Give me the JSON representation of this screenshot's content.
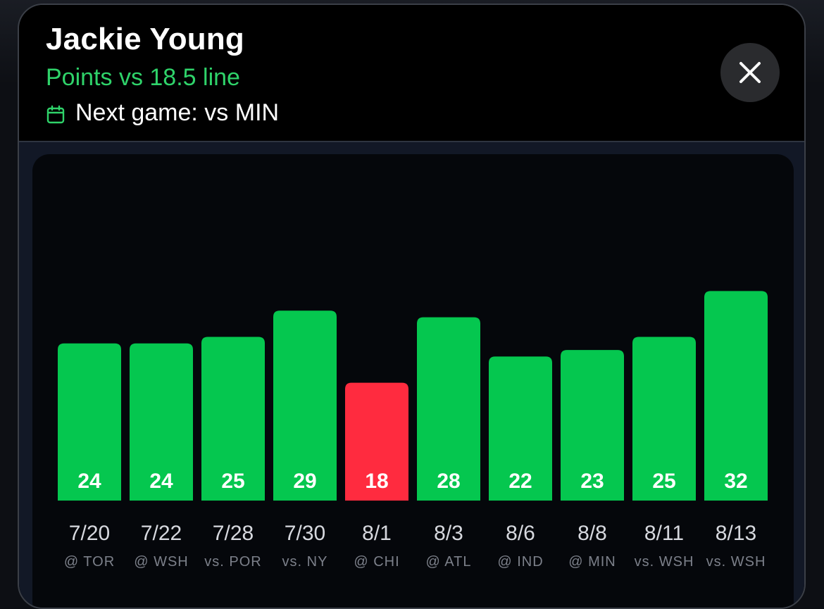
{
  "header": {
    "title": "Jackie Young",
    "subtitle": "Points vs 18.5 line",
    "next_game": "Next game: vs MIN",
    "calendar_icon": "calendar-icon",
    "close_icon": "close-icon"
  },
  "colors": {
    "over": "#05c74f",
    "under": "#ff2b3f",
    "accent": "#2fd36a"
  },
  "chart_data": {
    "type": "bar",
    "line": 18.5,
    "categories": [
      "7/20",
      "7/22",
      "7/28",
      "7/30",
      "8/1",
      "8/3",
      "8/6",
      "8/8",
      "8/11",
      "8/13"
    ],
    "opponents": [
      "@ TOR",
      "@ WSH",
      "vs. POR",
      "vs. NY",
      "@ CHI",
      "@ ATL",
      "@ IND",
      "@ MIN",
      "vs. WSH",
      "vs. WSH"
    ],
    "values": [
      24,
      24,
      25,
      29,
      18,
      28,
      22,
      23,
      25,
      32
    ]
  }
}
